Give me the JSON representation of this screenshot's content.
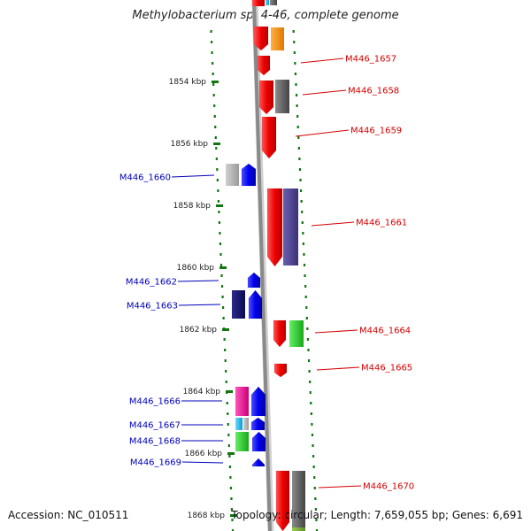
{
  "title": "Methylobacterium sp. 4-46, complete genome",
  "footer": {
    "accession": "Accession: NC_010511",
    "topology": "Topology: circular; Length: 7,659,055 bp; Genes: 6,691"
  },
  "colors": {
    "plus_strand": "#ee1111",
    "minus_strand": "#1111ee",
    "label_plus": "#d40000",
    "label_minus": "#0000bb",
    "tick_green": "#117711",
    "backbone": "#8a8a8a"
  },
  "scale": {
    "unit": "kbp",
    "ticks": [
      {
        "label": "1854 kbp"
      },
      {
        "label": "1856 kbp"
      },
      {
        "label": "1858 kbp"
      },
      {
        "label": "1860 kbp"
      },
      {
        "label": "1862 kbp"
      },
      {
        "label": "1864 kbp"
      },
      {
        "label": "1866 kbp"
      },
      {
        "label": "1868 kbp"
      }
    ]
  },
  "genes_plus": [
    {
      "name": "M446_1657"
    },
    {
      "name": "M446_1658"
    },
    {
      "name": "M446_1659"
    },
    {
      "name": "M446_1661"
    },
    {
      "name": "M446_1664"
    },
    {
      "name": "M446_1665"
    },
    {
      "name": "M446_1670"
    }
  ],
  "genes_minus": [
    {
      "name": "M446_1660"
    },
    {
      "name": "M446_1662"
    },
    {
      "name": "M446_1663"
    },
    {
      "name": "M446_1666"
    },
    {
      "name": "M446_1667"
    },
    {
      "name": "M446_1668"
    },
    {
      "name": "M446_1669"
    }
  ]
}
